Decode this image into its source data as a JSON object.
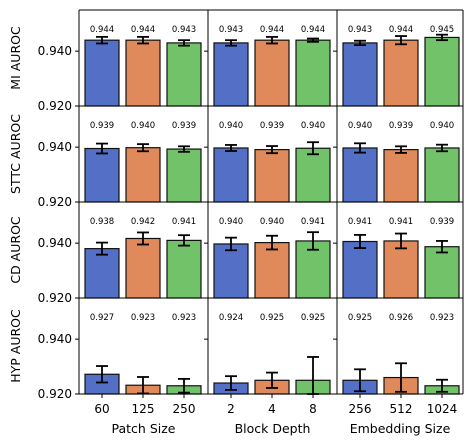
{
  "chart_data": {
    "type": "bar",
    "colors": [
      "#5470c6",
      "#e0895a",
      "#72c26a"
    ],
    "row_labels": [
      "MI AUROC",
      "STTC AUROC",
      "CD AUROC",
      "HYP AUROC"
    ],
    "y_ticks": [
      "0.940",
      "0.920"
    ],
    "ylim": [
      0.92,
      0.955
    ],
    "groups": [
      {
        "xlabel": "Patch Size",
        "categories": [
          "60",
          "125",
          "250"
        ]
      },
      {
        "xlabel": "Block Depth",
        "categories": [
          "2",
          "4",
          "8"
        ]
      },
      {
        "xlabel": "Embedding Size",
        "categories": [
          "256",
          "512",
          "1024"
        ]
      }
    ],
    "rows": [
      {
        "label": "MI AUROC",
        "values": [
          [
            0.944,
            0.944,
            0.943
          ],
          [
            0.943,
            0.944,
            0.944
          ],
          [
            0.943,
            0.944,
            0.945
          ]
        ],
        "value_labels": [
          [
            "0.944",
            "0.944",
            "0.943"
          ],
          [
            "0.943",
            "0.944",
            "0.944"
          ],
          [
            "0.943",
            "0.944",
            "0.945"
          ]
        ],
        "errors": [
          [
            0.0012,
            0.0012,
            0.001
          ],
          [
            0.001,
            0.0012,
            0.0006
          ],
          [
            0.0008,
            0.0015,
            0.001
          ]
        ]
      },
      {
        "label": "STTC AUROC",
        "values": [
          [
            0.9395,
            0.9398,
            0.9393
          ],
          [
            0.9397,
            0.9391,
            0.9396
          ],
          [
            0.9397,
            0.9391,
            0.9397
          ]
        ],
        "value_labels": [
          [
            "0.939",
            "0.940",
            "0.939"
          ],
          [
            "0.940",
            "0.939",
            "0.940"
          ],
          [
            "0.940",
            "0.939",
            "0.940"
          ]
        ],
        "errors": [
          [
            0.0018,
            0.0013,
            0.001
          ],
          [
            0.0011,
            0.0013,
            0.0022
          ],
          [
            0.0017,
            0.0012,
            0.0012
          ]
        ]
      },
      {
        "label": "CD AUROC",
        "values": [
          [
            0.938,
            0.9417,
            0.941
          ],
          [
            0.9397,
            0.9402,
            0.9408
          ],
          [
            0.9406,
            0.9408,
            0.9387
          ]
        ],
        "value_labels": [
          [
            "0.938",
            "0.942",
            "0.941"
          ],
          [
            "0.940",
            "0.940",
            "0.941"
          ],
          [
            "0.941",
            "0.941",
            "0.939"
          ]
        ],
        "errors": [
          [
            0.0022,
            0.0022,
            0.0019
          ],
          [
            0.0023,
            0.0025,
            0.0032
          ],
          [
            0.0024,
            0.0027,
            0.0021
          ]
        ]
      },
      {
        "label": "HYP AUROC",
        "values": [
          [
            0.9272,
            0.9232,
            0.923
          ],
          [
            0.924,
            0.925,
            0.925
          ],
          [
            0.925,
            0.926,
            0.923
          ]
        ],
        "value_labels": [
          [
            "0.927",
            "0.923",
            "0.923"
          ],
          [
            "0.924",
            "0.925",
            "0.925"
          ],
          [
            "0.925",
            "0.926",
            "0.923"
          ]
        ],
        "errors": [
          [
            0.003,
            0.003,
            0.0025
          ],
          [
            0.0025,
            0.0028,
            0.0085
          ],
          [
            0.004,
            0.0052,
            0.0022
          ]
        ]
      }
    ]
  }
}
